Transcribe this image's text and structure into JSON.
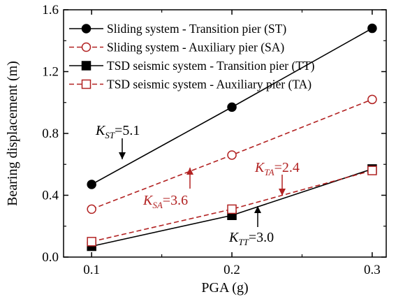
{
  "chart_data": {
    "type": "line",
    "title": "",
    "xlabel": "PGA (g)",
    "ylabel": "Bearing displacement (m)",
    "xlim": [
      0.08,
      0.31
    ],
    "ylim": [
      0.0,
      1.6
    ],
    "x_ticks": [
      "0.1",
      "0.2",
      "0.3"
    ],
    "y_ticks": [
      "0.0",
      "0.4",
      "0.8",
      "1.2",
      "1.6"
    ],
    "x": [
      0.1,
      0.2,
      0.3
    ],
    "series": [
      {
        "name": "Sliding system - Transition pier (ST)",
        "values": [
          0.47,
          0.97,
          1.48
        ],
        "color": "#000000",
        "line": "solid",
        "marker": "circle",
        "filled": true
      },
      {
        "name": "Sliding system - Auxiliary pier (SA)",
        "values": [
          0.31,
          0.66,
          1.02
        ],
        "color": "#b22222",
        "line": "dashed",
        "marker": "circle",
        "filled": false
      },
      {
        "name": "TSD seismic system - Transition pier (TT)",
        "values": [
          0.07,
          0.27,
          0.57
        ],
        "color": "#000000",
        "line": "solid",
        "marker": "square",
        "filled": true
      },
      {
        "name": "TSD seismic system - Auxiliary pier (TA)",
        "values": [
          0.1,
          0.31,
          0.56
        ],
        "color": "#b22222",
        "line": "dashed",
        "marker": "square",
        "filled": false
      }
    ],
    "annotations": [
      {
        "k": "K",
        "sub": "ST",
        "text": "=5.1",
        "color": "#000000"
      },
      {
        "k": "K",
        "sub": "SA",
        "text": "=3.6",
        "color": "#b22222"
      },
      {
        "k": "K",
        "sub": "TA",
        "text": "=2.4",
        "color": "#b22222"
      },
      {
        "k": "K",
        "sub": "TT",
        "text": "=3.0",
        "color": "#000000"
      }
    ],
    "legend_position": "top-left",
    "grid": false
  }
}
